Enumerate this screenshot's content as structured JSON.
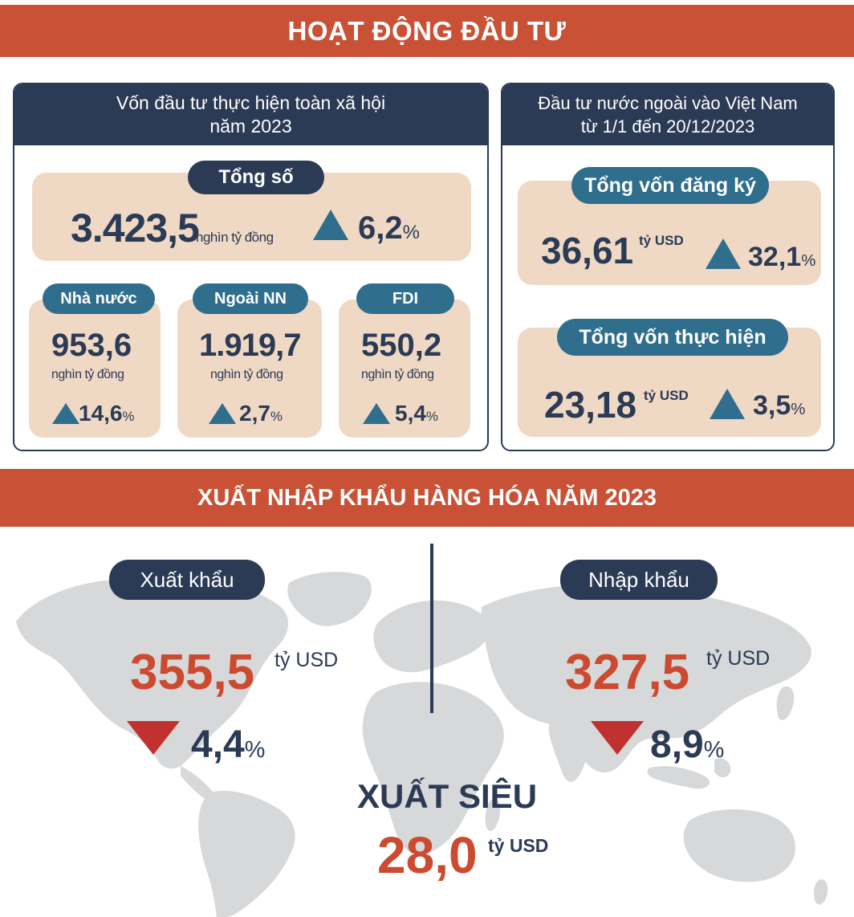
{
  "section1": {
    "title": "HOẠT ĐỘNG ĐẦU TƯ",
    "left": {
      "heading_line1": "Vốn đầu tư thực hiện toàn xã hội",
      "heading_line2": "năm 2023",
      "total": {
        "label": "Tổng số",
        "value": "3.423,5",
        "unit": "nghìn tỷ đồng",
        "change": "6,2",
        "pct": "%"
      },
      "items": [
        {
          "label": "Nhà nước",
          "value": "953,6",
          "unit": "nghìn tỷ đồng",
          "change": "14,6",
          "pct": "%"
        },
        {
          "label": "Ngoài NN",
          "value": "1.919,7",
          "unit": "nghìn tỷ đồng",
          "change": "2,7",
          "pct": "%"
        },
        {
          "label": "FDI",
          "value": "550,2",
          "unit": "nghìn tỷ đồng",
          "change": "5,4",
          "pct": "%"
        }
      ]
    },
    "right": {
      "heading_line1": "Đầu tư nước ngoài vào Việt Nam",
      "heading_line2": "từ 1/1 đến 20/12/2023",
      "registered": {
        "label": "Tổng vốn đăng ký",
        "value": "36,61",
        "unit": "tỷ USD",
        "change": "32,1",
        "pct": "%"
      },
      "implemented": {
        "label": "Tổng vốn thực hiện",
        "value": "23,18",
        "unit": "tỷ USD",
        "change": "3,5",
        "pct": "%"
      }
    }
  },
  "section2": {
    "title": "XUẤT NHẬP KHẨU HÀNG HÓA  NĂM 2023",
    "export": {
      "label": "Xuất khẩu",
      "value": "355,5",
      "unit": "tỷ USD",
      "change": "4,4",
      "pct": "%"
    },
    "import": {
      "label": "Nhập khẩu",
      "value": "327,5",
      "unit": "tỷ USD",
      "change": "8,9",
      "pct": "%"
    },
    "surplus": {
      "label": "XUẤT SIÊU",
      "value": "28,0",
      "unit": "tỷ USD"
    }
  },
  "colors": {
    "banner": "#c95136",
    "navy": "#2b3a55",
    "teal": "#2f6e8c",
    "beige": "#efd9c4",
    "red": "#c0322f",
    "map": "#d6d8d9"
  },
  "icons": {
    "up": "triangle-up-icon",
    "down": "triangle-down-icon",
    "map": "world-map-icon"
  }
}
